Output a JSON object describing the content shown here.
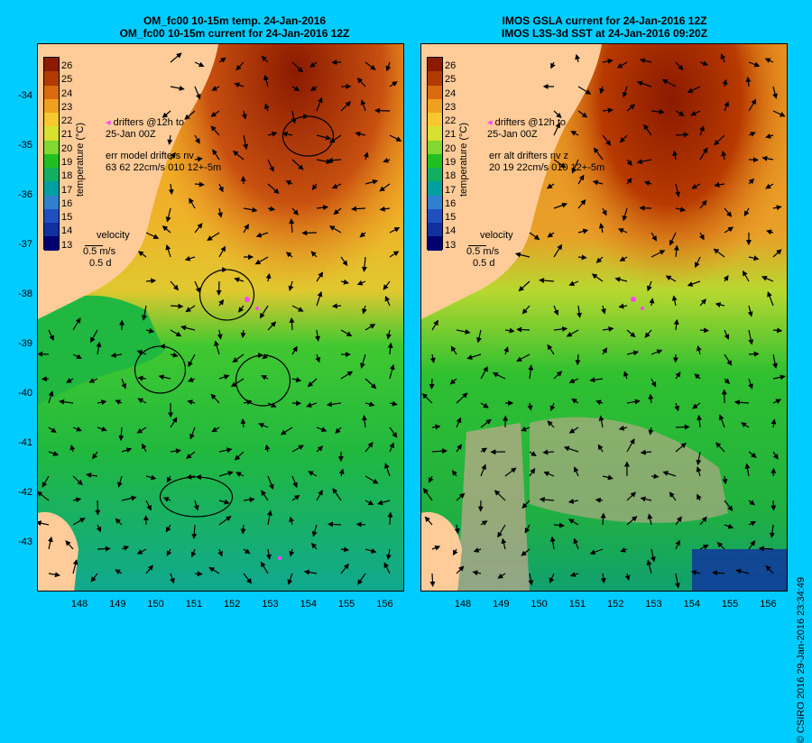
{
  "left": {
    "title_line1": "OM_fc00 10-15m temp. 24-Jan-2016",
    "title_line2": "OM_fc00 10-15m current for 24-Jan-2016 12Z",
    "drifters_line1": "drifters @12h to",
    "drifters_line2": "25-Jan 00Z",
    "err_line1": "err model drifters nv",
    "err_line2": "63 62 22cm/s 010 12+-5m"
  },
  "right": {
    "title_line1": "IMOS GSLA current for 24-Jan-2016 12Z",
    "title_line2": "IMOS L3S-3d SST at 24-Jan-2016 09:20Z",
    "drifters_line1": "drifters @12h to",
    "drifters_line2": "25-Jan 00Z",
    "err_line1": "err alt drifters nv z",
    "err_line2": "20 19 22cm/s 010 12+-5m"
  },
  "velocity": {
    "label": "velocity",
    "speed": "0.5 m/s",
    "time": "0.5 d"
  },
  "colorbar": {
    "title": "temperature (°C)",
    "ticks": [
      "26",
      "25",
      "24",
      "23",
      "22",
      "21",
      "20",
      "19",
      "18",
      "17",
      "16",
      "15",
      "14",
      "13"
    ],
    "colors": [
      "#8b1a00",
      "#b03a00",
      "#d96a10",
      "#f0a020",
      "#f8c830",
      "#d8e030",
      "#80d830",
      "#20c020",
      "#10b060",
      "#00a0a0",
      "#3080d0",
      "#2050c0",
      "#1030a0",
      "#000070"
    ]
  },
  "y_ticks": [
    "-34",
    "-35",
    "-36",
    "-37",
    "-38",
    "-39",
    "-40",
    "-41",
    "-42",
    "-43"
  ],
  "x_ticks": [
    "148",
    "149",
    "150",
    "151",
    "152",
    "153",
    "154",
    "155",
    "156"
  ],
  "copyright": "© CSIRO 2016   29-Jan-2016 23:34:49",
  "colors": {
    "background": "#00ccff",
    "land": "#ffcc99",
    "land_alt": "#c8a890",
    "drifter": "#ff44ff"
  }
}
